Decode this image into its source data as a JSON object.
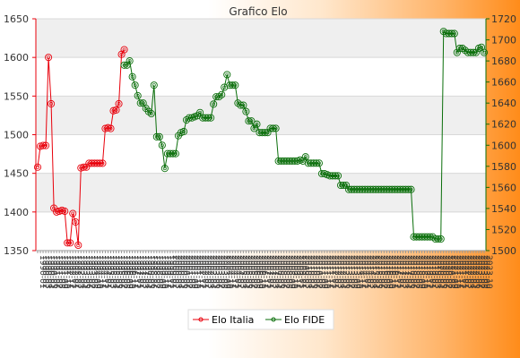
{
  "chart_data": {
    "type": "line",
    "title": "Grafico Elo",
    "y_left": {
      "min": 1350,
      "max": 1650,
      "ticks": [
        1350,
        1400,
        1450,
        1500,
        1550,
        1600,
        1650
      ]
    },
    "y_right": {
      "min": 1500,
      "max": 1720,
      "ticks": [
        1500,
        1520,
        1540,
        1560,
        1580,
        1600,
        1620,
        1640,
        1660,
        1680,
        1700,
        1720
      ]
    },
    "grid": true,
    "legend_position": "bottom",
    "x_count": 131,
    "series": [
      {
        "name": "Elo Italia",
        "axis": "left",
        "color": "#e8000b",
        "values": [
          {
            "x": 0,
            "y": 1458
          },
          {
            "x": 1,
            "y": 1485
          },
          {
            "x": 2,
            "y": 1486
          },
          {
            "x": 3,
            "y": 1486
          },
          {
            "x": 4,
            "y": 1600
          },
          {
            "x": 5,
            "y": 1540
          },
          {
            "x": 6,
            "y": 1405
          },
          {
            "x": 7,
            "y": 1400
          },
          {
            "x": 8,
            "y": 1401
          },
          {
            "x": 9,
            "y": 1402
          },
          {
            "x": 10,
            "y": 1401
          },
          {
            "x": 11,
            "y": 1360
          },
          {
            "x": 12,
            "y": 1360
          },
          {
            "x": 13,
            "y": 1398
          },
          {
            "x": 14,
            "y": 1387
          },
          {
            "x": 15,
            "y": 1357
          },
          {
            "x": 16,
            "y": 1457
          },
          {
            "x": 17,
            "y": 1458
          },
          {
            "x": 18,
            "y": 1458
          },
          {
            "x": 19,
            "y": 1463
          },
          {
            "x": 20,
            "y": 1463
          },
          {
            "x": 21,
            "y": 1463
          },
          {
            "x": 22,
            "y": 1463
          },
          {
            "x": 23,
            "y": 1463
          },
          {
            "x": 24,
            "y": 1463
          },
          {
            "x": 25,
            "y": 1508
          },
          {
            "x": 26,
            "y": 1509
          },
          {
            "x": 27,
            "y": 1508
          },
          {
            "x": 28,
            "y": 1531
          },
          {
            "x": 29,
            "y": 1532
          },
          {
            "x": 30,
            "y": 1540
          },
          {
            "x": 31,
            "y": 1604
          },
          {
            "x": 32,
            "y": 1610
          }
        ]
      },
      {
        "name": "Elo FIDE",
        "axis": "right",
        "color": "#0a6e0a",
        "values": [
          {
            "x": 32,
            "y": 1676
          },
          {
            "x": 33,
            "y": 1676
          },
          {
            "x": 34,
            "y": 1680
          },
          {
            "x": 35,
            "y": 1665
          },
          {
            "x": 36,
            "y": 1657
          },
          {
            "x": 37,
            "y": 1647
          },
          {
            "x": 38,
            "y": 1640
          },
          {
            "x": 39,
            "y": 1640
          },
          {
            "x": 40,
            "y": 1635
          },
          {
            "x": 41,
            "y": 1632
          },
          {
            "x": 42,
            "y": 1630
          },
          {
            "x": 43,
            "y": 1657
          },
          {
            "x": 44,
            "y": 1608
          },
          {
            "x": 45,
            "y": 1608
          },
          {
            "x": 46,
            "y": 1600
          },
          {
            "x": 47,
            "y": 1578
          },
          {
            "x": 48,
            "y": 1592
          },
          {
            "x": 49,
            "y": 1592
          },
          {
            "x": 50,
            "y": 1592
          },
          {
            "x": 51,
            "y": 1592
          },
          {
            "x": 52,
            "y": 1609
          },
          {
            "x": 53,
            "y": 1612
          },
          {
            "x": 54,
            "y": 1613
          },
          {
            "x": 55,
            "y": 1624
          },
          {
            "x": 56,
            "y": 1626
          },
          {
            "x": 57,
            "y": 1626
          },
          {
            "x": 58,
            "y": 1627
          },
          {
            "x": 59,
            "y": 1628
          },
          {
            "x": 60,
            "y": 1631
          },
          {
            "x": 61,
            "y": 1626
          },
          {
            "x": 62,
            "y": 1626
          },
          {
            "x": 63,
            "y": 1626
          },
          {
            "x": 64,
            "y": 1626
          },
          {
            "x": 65,
            "y": 1639
          },
          {
            "x": 66,
            "y": 1646
          },
          {
            "x": 67,
            "y": 1646
          },
          {
            "x": 68,
            "y": 1648
          },
          {
            "x": 69,
            "y": 1655
          },
          {
            "x": 70,
            "y": 1667
          },
          {
            "x": 71,
            "y": 1657
          },
          {
            "x": 72,
            "y": 1657
          },
          {
            "x": 73,
            "y": 1657
          },
          {
            "x": 74,
            "y": 1640
          },
          {
            "x": 75,
            "y": 1638
          },
          {
            "x": 76,
            "y": 1638
          },
          {
            "x": 77,
            "y": 1632
          },
          {
            "x": 78,
            "y": 1623
          },
          {
            "x": 79,
            "y": 1623
          },
          {
            "x": 80,
            "y": 1616
          },
          {
            "x": 81,
            "y": 1620
          },
          {
            "x": 82,
            "y": 1612
          },
          {
            "x": 83,
            "y": 1612
          },
          {
            "x": 84,
            "y": 1612
          },
          {
            "x": 85,
            "y": 1612
          },
          {
            "x": 86,
            "y": 1616
          },
          {
            "x": 87,
            "y": 1616
          },
          {
            "x": 88,
            "y": 1616
          },
          {
            "x": 89,
            "y": 1585
          },
          {
            "x": 90,
            "y": 1585
          },
          {
            "x": 91,
            "y": 1585
          },
          {
            "x": 92,
            "y": 1585
          },
          {
            "x": 93,
            "y": 1585
          },
          {
            "x": 94,
            "y": 1585
          },
          {
            "x": 95,
            "y": 1585
          },
          {
            "x": 96,
            "y": 1585
          },
          {
            "x": 97,
            "y": 1586
          },
          {
            "x": 98,
            "y": 1585
          },
          {
            "x": 99,
            "y": 1589
          },
          {
            "x": 100,
            "y": 1583
          },
          {
            "x": 101,
            "y": 1583
          },
          {
            "x": 102,
            "y": 1583
          },
          {
            "x": 103,
            "y": 1583
          },
          {
            "x": 104,
            "y": 1583
          },
          {
            "x": 105,
            "y": 1573
          },
          {
            "x": 106,
            "y": 1573
          },
          {
            "x": 107,
            "y": 1572
          },
          {
            "x": 108,
            "y": 1571
          },
          {
            "x": 109,
            "y": 1571
          },
          {
            "x": 110,
            "y": 1571
          },
          {
            "x": 111,
            "y": 1571
          },
          {
            "x": 112,
            "y": 1562
          },
          {
            "x": 113,
            "y": 1562
          },
          {
            "x": 114,
            "y": 1562
          },
          {
            "x": 115,
            "y": 1558
          },
          {
            "x": 116,
            "y": 1558
          },
          {
            "x": 117,
            "y": 1558
          },
          {
            "x": 118,
            "y": 1558
          },
          {
            "x": 119,
            "y": 1558
          },
          {
            "x": 120,
            "y": 1558
          },
          {
            "x": 121,
            "y": 1558
          },
          {
            "x": 122,
            "y": 1558
          },
          {
            "x": 123,
            "y": 1558
          },
          {
            "x": 124,
            "y": 1558
          },
          {
            "x": 125,
            "y": 1558
          },
          {
            "x": 126,
            "y": 1558
          },
          {
            "x": 127,
            "y": 1558
          },
          {
            "x": 128,
            "y": 1558
          },
          {
            "x": 129,
            "y": 1558
          },
          {
            "x": 130,
            "y": 1558
          }
        ]
      }
    ],
    "series_extension": {
      "name": "Elo FIDE",
      "values_after_index": [
        {
          "x": 131,
          "y": 1558
        },
        {
          "x": 132,
          "y": 1558
        },
        {
          "x": 133,
          "y": 1558
        },
        {
          "x": 134,
          "y": 1558
        },
        {
          "x": 135,
          "y": 1558
        },
        {
          "x": 136,
          "y": 1558
        },
        {
          "x": 137,
          "y": 1558
        },
        {
          "x": 138,
          "y": 1558
        },
        {
          "x": 139,
          "y": 1513
        },
        {
          "x": 140,
          "y": 1513
        },
        {
          "x": 141,
          "y": 1513
        },
        {
          "x": 142,
          "y": 1513
        },
        {
          "x": 143,
          "y": 1513
        },
        {
          "x": 144,
          "y": 1513
        },
        {
          "x": 145,
          "y": 1513
        },
        {
          "x": 146,
          "y": 1513
        },
        {
          "x": 147,
          "y": 1511
        },
        {
          "x": 148,
          "y": 1511
        },
        {
          "x": 149,
          "y": 1511
        },
        {
          "x": 150,
          "y": 1708
        },
        {
          "x": 151,
          "y": 1706
        },
        {
          "x": 152,
          "y": 1706
        },
        {
          "x": 153,
          "y": 1706
        },
        {
          "x": 154,
          "y": 1706
        },
        {
          "x": 155,
          "y": 1688
        },
        {
          "x": 156,
          "y": 1692
        },
        {
          "x": 157,
          "y": 1692
        },
        {
          "x": 158,
          "y": 1690
        },
        {
          "x": 159,
          "y": 1688
        },
        {
          "x": 160,
          "y": 1688
        },
        {
          "x": 161,
          "y": 1688
        },
        {
          "x": 162,
          "y": 1688
        },
        {
          "x": 163,
          "y": 1692
        },
        {
          "x": 164,
          "y": 1693
        },
        {
          "x": 165,
          "y": 1688
        }
      ]
    },
    "x_tick_label_prefixes": [
      "1990",
      "1991",
      "1992",
      "1993",
      "1994",
      "1995",
      "1996",
      "1997",
      "1998",
      "1999",
      "2000",
      "2001",
      "2002",
      "2003",
      "2004",
      "2005",
      "2006",
      "2007",
      "2008",
      "2009",
      "2010",
      "2011",
      "2012",
      "2013",
      "2014",
      "2015",
      "2016",
      "2017",
      "2018",
      "2019",
      "2020",
      "2021",
      "2022",
      "2023"
    ]
  }
}
